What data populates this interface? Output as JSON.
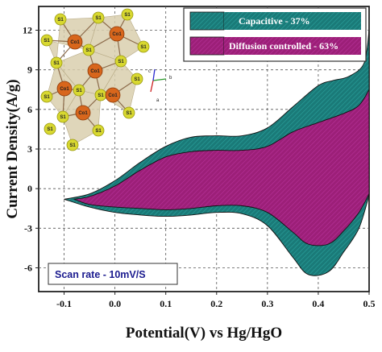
{
  "chart_data": {
    "type": "area",
    "xlabel": "Potential(V) vs Hg/HgO",
    "ylabel": "Current Density(A/g)",
    "xlim": [
      -0.15,
      0.5
    ],
    "ylim": [
      -7.8,
      13.8
    ],
    "xticks": [
      "-0.1",
      "0.0",
      "0.1",
      "0.2",
      "0.3",
      "0.4",
      "0.5"
    ],
    "yticks": [
      "-6",
      "-3",
      "0",
      "3",
      "6",
      "9",
      "12"
    ],
    "xtick_values": [
      -0.1,
      0.0,
      0.1,
      0.2,
      0.3,
      0.4,
      0.5
    ],
    "ytick_values": [
      -6,
      -3,
      0,
      3,
      6,
      9,
      12
    ],
    "grid": "dashed",
    "legend_position": "top-right",
    "series": [
      {
        "name": "Capacitive - 37%",
        "color": "#1a7a78",
        "upper": [
          [
            -0.1,
            -0.8
          ],
          [
            -0.05,
            -0.4
          ],
          [
            0.0,
            0.6
          ],
          [
            0.05,
            2.0
          ],
          [
            0.1,
            3.2
          ],
          [
            0.15,
            3.9
          ],
          [
            0.2,
            4.0
          ],
          [
            0.25,
            4.0
          ],
          [
            0.3,
            4.6
          ],
          [
            0.35,
            6.2
          ],
          [
            0.4,
            7.8
          ],
          [
            0.43,
            8.2
          ],
          [
            0.46,
            8.5
          ],
          [
            0.49,
            9.5
          ],
          [
            0.5,
            12.0
          ]
        ],
        "lower": [
          [
            -0.1,
            -0.8
          ],
          [
            -0.05,
            -1.4
          ],
          [
            0.0,
            -1.8
          ],
          [
            0.05,
            -2.0
          ],
          [
            0.1,
            -2.1
          ],
          [
            0.15,
            -2.0
          ],
          [
            0.2,
            -1.8
          ],
          [
            0.25,
            -1.9
          ],
          [
            0.3,
            -2.8
          ],
          [
            0.35,
            -5.2
          ],
          [
            0.38,
            -6.5
          ],
          [
            0.42,
            -6.3
          ],
          [
            0.45,
            -4.8
          ],
          [
            0.48,
            -3.0
          ],
          [
            0.5,
            -0.5
          ]
        ]
      },
      {
        "name": "Diffusion controlled - 63%",
        "color": "#9c1f78",
        "upper": [
          [
            -0.08,
            -0.8
          ],
          [
            -0.05,
            -0.6
          ],
          [
            0.0,
            0.2
          ],
          [
            0.05,
            1.4
          ],
          [
            0.1,
            2.4
          ],
          [
            0.15,
            2.8
          ],
          [
            0.2,
            2.9
          ],
          [
            0.25,
            2.9
          ],
          [
            0.3,
            3.2
          ],
          [
            0.35,
            4.3
          ],
          [
            0.4,
            5.0
          ],
          [
            0.45,
            5.7
          ],
          [
            0.48,
            6.3
          ],
          [
            0.5,
            7.5
          ]
        ],
        "lower": [
          [
            -0.08,
            -0.8
          ],
          [
            -0.05,
            -1.2
          ],
          [
            0.0,
            -1.4
          ],
          [
            0.05,
            -1.5
          ],
          [
            0.1,
            -1.6
          ],
          [
            0.15,
            -1.5
          ],
          [
            0.2,
            -1.3
          ],
          [
            0.25,
            -1.3
          ],
          [
            0.3,
            -1.8
          ],
          [
            0.35,
            -3.3
          ],
          [
            0.38,
            -4.2
          ],
          [
            0.42,
            -4.2
          ],
          [
            0.45,
            -3.2
          ],
          [
            0.48,
            -1.8
          ],
          [
            0.5,
            -0.4
          ]
        ]
      }
    ],
    "annotations": [
      {
        "text": "Scan rate - 10mV/S",
        "position": "bottom-left"
      }
    ]
  },
  "inset": {
    "description_labels": [
      "S1",
      "Co1",
      "a",
      "b",
      "c"
    ],
    "sulfur_label": "S1",
    "cobalt_label": "Co1",
    "axis_labels": [
      "a",
      "b",
      "c"
    ],
    "colors": {
      "sulfur": "#d8d830",
      "cobalt": "#d8661c",
      "bond": "#8b6a4a",
      "polyhedra": "#d9cfae"
    }
  }
}
